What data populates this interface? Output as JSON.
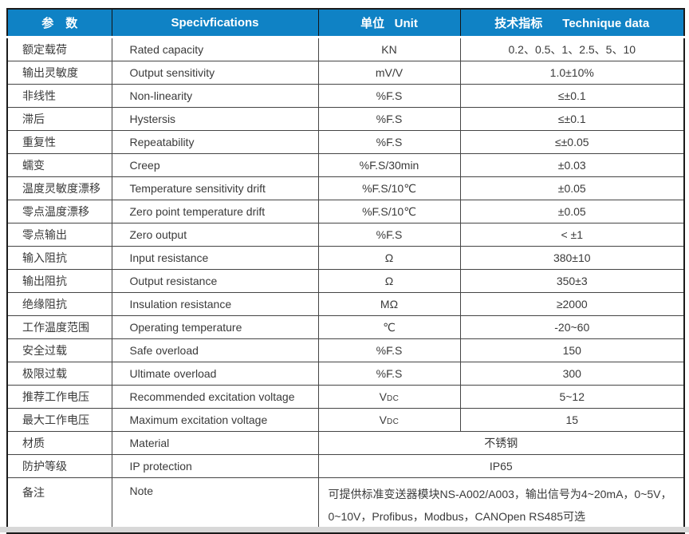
{
  "table": {
    "headers": {
      "param": "参　数",
      "spec": "Specivfications",
      "unit": "单位   Unit",
      "data": "技术指标      Technique data"
    },
    "header_bg_color": "#0f82c5",
    "rows": [
      {
        "param": "额定载荷",
        "spec": "Rated capacity",
        "unit": "KN",
        "value": "0.2、0.5、1、2.5、5、10"
      },
      {
        "param": "输出灵敏度",
        "spec": "Output sensitivity",
        "unit": "mV/V",
        "value": "1.0±10%"
      },
      {
        "param": "非线性",
        "spec": "Non-linearity",
        "unit": "%F.S",
        "value": "≤±0.1"
      },
      {
        "param": "滞后",
        "spec": "Hystersis",
        "unit": "%F.S",
        "value": "≤±0.1"
      },
      {
        "param": "重复性",
        "spec": "Repeatability",
        "unit": "%F.S",
        "value": "≤±0.05"
      },
      {
        "param": "蠕变",
        "spec": "Creep",
        "unit": "%F.S/30min",
        "value": "±0.03"
      },
      {
        "param": "温度灵敏度漂移",
        "spec": "Temperature sensitivity drift",
        "unit": "%F.S/10℃",
        "value": "±0.05"
      },
      {
        "param": "零点温度漂移",
        "spec": "Zero point temperature drift",
        "unit": "%F.S/10℃",
        "value": "±0.05"
      },
      {
        "param": "零点输出",
        "spec": "Zero output",
        "unit": "%F.S",
        "value": "< ±1"
      },
      {
        "param": "输入阻抗",
        "spec": "Input resistance",
        "unit": "Ω",
        "value": "380±10"
      },
      {
        "param": "输出阻抗",
        "spec": "Output resistance",
        "unit": "Ω",
        "value": "350±3"
      },
      {
        "param": "绝缘阻抗",
        "spec": "Insulation resistance",
        "unit": "MΩ",
        "value": "≥2000"
      },
      {
        "param": "工作温度范围",
        "spec": "Operating temperature",
        "unit": "℃",
        "value": "-20~60"
      },
      {
        "param": "安全过载",
        "spec": "Safe overload",
        "unit": "%F.S",
        "value": "150"
      },
      {
        "param": "极限过载",
        "spec": "Ultimate overload",
        "unit": "%F.S",
        "value": "300"
      },
      {
        "param": "推荐工作电压",
        "spec": "Recommended excitation voltage",
        "unit": "VDC",
        "value": "5~12"
      },
      {
        "param": "最大工作电压",
        "spec": "Maximum excitation voltage",
        "unit": "VDC",
        "value": "15"
      },
      {
        "param": "材质",
        "spec": "Material",
        "merged": "不锈钢"
      },
      {
        "param": "防护等级",
        "spec": "IP protection",
        "merged": "IP65"
      },
      {
        "param": "备注",
        "spec": "Note",
        "merged": "可提供标准变送器模块NS-A002/A003，输出信号为4~20mA，0~5V，\n0~10V，Profibus，Modbus，CANOpen  RS485可选",
        "align": "left",
        "tall": true
      }
    ]
  }
}
